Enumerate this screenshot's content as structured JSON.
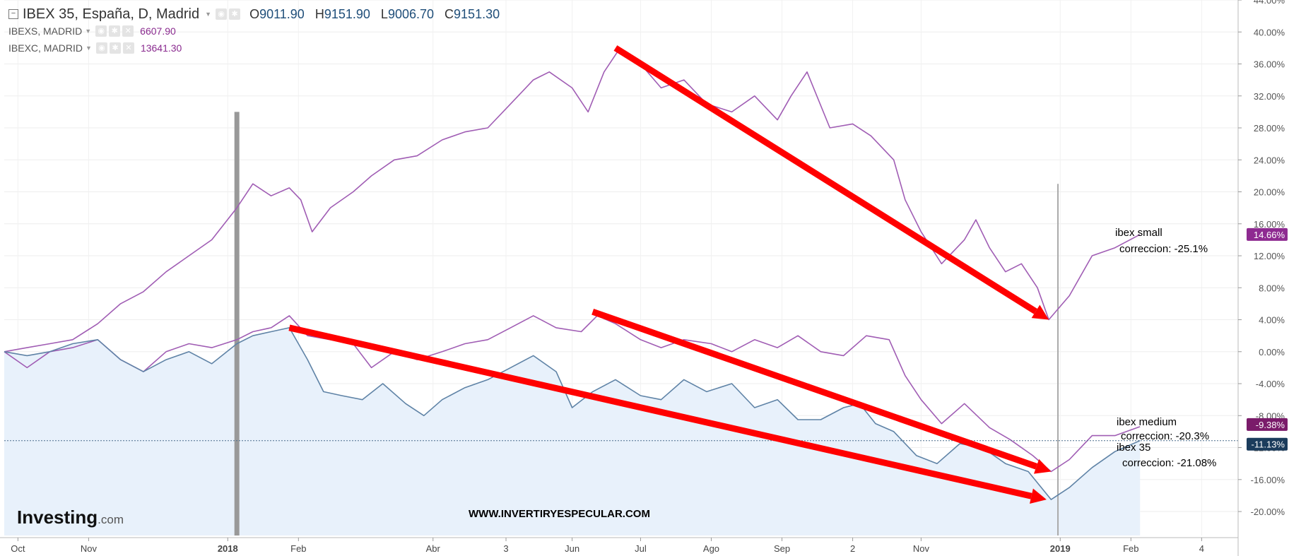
{
  "header": {
    "main_symbol": "IBEX 35, España, D, Madrid",
    "ohlc": [
      {
        "k": "O",
        "v": "9011.90"
      },
      {
        "k": "H",
        "v": "9151.90"
      },
      {
        "k": "L",
        "v": "9006.70"
      },
      {
        "k": "C",
        "v": "9151.30"
      }
    ],
    "series": [
      {
        "name": "IBEXS, MADRID",
        "value": "6607.90"
      },
      {
        "name": "IBEXC, MADRID",
        "value": "13641.30"
      }
    ]
  },
  "watermark": {
    "brand": "Investing",
    "suffix": ".com",
    "url": "WWW.INVERTIRYESPECULAR.COM"
  },
  "colors": {
    "purple": "#a05db4",
    "blue": "#5f83a6",
    "fill": "#e8f1fb",
    "arrow": "#ff0000"
  },
  "chart_data": {
    "type": "line",
    "x_labels": [
      "Oct",
      "Nov",
      "2018",
      "Feb",
      "Abr",
      "3",
      "Jun",
      "Jul",
      "Ago",
      "Sep",
      "2",
      "Nov",
      "2019",
      "Feb",
      "4"
    ],
    "y_ticks": [
      "44.00%",
      "40.00%",
      "36.00%",
      "32.00%",
      "28.00%",
      "24.00%",
      "20.00%",
      "16.00%",
      "12.00%",
      "8.00%",
      "4.00%",
      "0.00%",
      "-4.00%",
      "-8.00%",
      "-12.00%",
      "-16.00%",
      "-20.00%"
    ],
    "ylim": [
      -23,
      44
    ],
    "x_range": [
      "2017-09-25",
      "2019-03-20"
    ],
    "series": [
      {
        "name": "IBEXS, MADRID",
        "color": "#a05db4",
        "points": [
          [
            "2017-09-25",
            0
          ],
          [
            "2017-10-05",
            0.5
          ],
          [
            "2017-10-15",
            1.0
          ],
          [
            "2017-10-25",
            1.5
          ],
          [
            "2017-11-05",
            3.5
          ],
          [
            "2017-11-15",
            6.0
          ],
          [
            "2017-11-25",
            7.5
          ],
          [
            "2017-12-05",
            10.0
          ],
          [
            "2017-12-15",
            12.0
          ],
          [
            "2017-12-25",
            14.0
          ],
          [
            "2018-01-05",
            18.0
          ],
          [
            "2018-01-12",
            21.0
          ],
          [
            "2018-01-20",
            19.5
          ],
          [
            "2018-01-28",
            20.5
          ],
          [
            "2018-02-02",
            19.0
          ],
          [
            "2018-02-07",
            15.0
          ],
          [
            "2018-02-15",
            18.0
          ],
          [
            "2018-02-25",
            20.0
          ],
          [
            "2018-03-05",
            22.0
          ],
          [
            "2018-03-15",
            24.0
          ],
          [
            "2018-03-25",
            24.5
          ],
          [
            "2018-04-05",
            26.5
          ],
          [
            "2018-04-15",
            27.5
          ],
          [
            "2018-04-25",
            28.0
          ],
          [
            "2018-05-05",
            31.0
          ],
          [
            "2018-05-15",
            34.0
          ],
          [
            "2018-05-22",
            35.0
          ],
          [
            "2018-06-01",
            33.0
          ],
          [
            "2018-06-08",
            30.0
          ],
          [
            "2018-06-15",
            35.0
          ],
          [
            "2018-06-22",
            38.0
          ],
          [
            "2018-07-01",
            36.0
          ],
          [
            "2018-07-10",
            33.0
          ],
          [
            "2018-07-20",
            34.0
          ],
          [
            "2018-07-30",
            31.0
          ],
          [
            "2018-08-10",
            30.0
          ],
          [
            "2018-08-20",
            32.0
          ],
          [
            "2018-08-30",
            29.0
          ],
          [
            "2018-09-05",
            32.0
          ],
          [
            "2018-09-12",
            35.0
          ],
          [
            "2018-09-22",
            28.0
          ],
          [
            "2018-10-02",
            28.5
          ],
          [
            "2018-10-10",
            27.0
          ],
          [
            "2018-10-20",
            24.0
          ],
          [
            "2018-10-25",
            19.0
          ],
          [
            "2018-11-01",
            15.0
          ],
          [
            "2018-11-10",
            11.0
          ],
          [
            "2018-11-20",
            14.0
          ],
          [
            "2018-11-25",
            16.5
          ],
          [
            "2018-12-01",
            13.0
          ],
          [
            "2018-12-08",
            10.0
          ],
          [
            "2018-12-15",
            11.0
          ],
          [
            "2018-12-22",
            8.0
          ],
          [
            "2018-12-27",
            4.0
          ],
          [
            "2019-01-05",
            7.0
          ],
          [
            "2019-01-15",
            12.0
          ],
          [
            "2019-01-25",
            13.0
          ],
          [
            "2019-02-05",
            14.66
          ]
        ]
      },
      {
        "name": "IBEXC, MADRID",
        "color": "#a05db4",
        "points": [
          [
            "2017-09-25",
            0
          ],
          [
            "2017-10-05",
            -2.0
          ],
          [
            "2017-10-15",
            0.0
          ],
          [
            "2017-10-25",
            0.5
          ],
          [
            "2017-11-05",
            1.5
          ],
          [
            "2017-11-15",
            -1.0
          ],
          [
            "2017-11-25",
            -2.5
          ],
          [
            "2017-12-05",
            0.0
          ],
          [
            "2017-12-15",
            1.0
          ],
          [
            "2017-12-25",
            0.5
          ],
          [
            "2018-01-05",
            1.5
          ],
          [
            "2018-01-12",
            2.5
          ],
          [
            "2018-01-20",
            3.0
          ],
          [
            "2018-01-28",
            4.5
          ],
          [
            "2018-02-05",
            2.0
          ],
          [
            "2018-02-15",
            1.5
          ],
          [
            "2018-02-25",
            1.0
          ],
          [
            "2018-03-05",
            -2.0
          ],
          [
            "2018-03-15",
            0.0
          ],
          [
            "2018-03-25",
            -1.0
          ],
          [
            "2018-04-05",
            0.0
          ],
          [
            "2018-04-15",
            1.0
          ],
          [
            "2018-04-25",
            1.5
          ],
          [
            "2018-05-05",
            3.0
          ],
          [
            "2018-05-15",
            4.5
          ],
          [
            "2018-05-25",
            3.0
          ],
          [
            "2018-06-05",
            2.5
          ],
          [
            "2018-06-12",
            4.5
          ],
          [
            "2018-06-20",
            3.5
          ],
          [
            "2018-07-01",
            1.5
          ],
          [
            "2018-07-10",
            0.5
          ],
          [
            "2018-07-20",
            1.5
          ],
          [
            "2018-08-01",
            1.0
          ],
          [
            "2018-08-10",
            0.0
          ],
          [
            "2018-08-20",
            1.5
          ],
          [
            "2018-08-30",
            0.5
          ],
          [
            "2018-09-08",
            2.0
          ],
          [
            "2018-09-18",
            0.0
          ],
          [
            "2018-09-28",
            -0.5
          ],
          [
            "2018-10-08",
            2.0
          ],
          [
            "2018-10-18",
            1.5
          ],
          [
            "2018-10-25",
            -3.0
          ],
          [
            "2018-11-01",
            -6.0
          ],
          [
            "2018-11-10",
            -9.0
          ],
          [
            "2018-11-20",
            -6.5
          ],
          [
            "2018-12-01",
            -9.5
          ],
          [
            "2018-12-10",
            -11.0
          ],
          [
            "2018-12-20",
            -13.0
          ],
          [
            "2018-12-28",
            -15.0
          ],
          [
            "2019-01-05",
            -13.5
          ],
          [
            "2019-01-15",
            -10.5
          ],
          [
            "2019-01-25",
            -10.5
          ],
          [
            "2019-02-05",
            -9.38
          ]
        ]
      },
      {
        "name": "IBEX 35, España",
        "color": "#5f83a6",
        "points": [
          [
            "2017-09-25",
            0
          ],
          [
            "2017-10-05",
            -0.5
          ],
          [
            "2017-10-15",
            0.0
          ],
          [
            "2017-10-25",
            1.0
          ],
          [
            "2017-11-05",
            1.5
          ],
          [
            "2017-11-15",
            -1.0
          ],
          [
            "2017-11-25",
            -2.5
          ],
          [
            "2017-12-05",
            -1.0
          ],
          [
            "2017-12-15",
            0.0
          ],
          [
            "2017-12-25",
            -1.5
          ],
          [
            "2018-01-05",
            1.0
          ],
          [
            "2018-01-12",
            2.0
          ],
          [
            "2018-01-20",
            2.5
          ],
          [
            "2018-01-28",
            3.0
          ],
          [
            "2018-02-05",
            -1.0
          ],
          [
            "2018-02-12",
            -5.0
          ],
          [
            "2018-02-20",
            -5.5
          ],
          [
            "2018-03-01",
            -6.0
          ],
          [
            "2018-03-10",
            -4.0
          ],
          [
            "2018-03-20",
            -6.5
          ],
          [
            "2018-03-28",
            -8.0
          ],
          [
            "2018-04-05",
            -6.0
          ],
          [
            "2018-04-15",
            -4.5
          ],
          [
            "2018-04-25",
            -3.5
          ],
          [
            "2018-05-05",
            -2.0
          ],
          [
            "2018-05-15",
            -0.5
          ],
          [
            "2018-05-25",
            -2.5
          ],
          [
            "2018-06-01",
            -7.0
          ],
          [
            "2018-06-10",
            -5.0
          ],
          [
            "2018-06-20",
            -3.5
          ],
          [
            "2018-07-01",
            -5.5
          ],
          [
            "2018-07-10",
            -6.0
          ],
          [
            "2018-07-20",
            -3.5
          ],
          [
            "2018-07-30",
            -5.0
          ],
          [
            "2018-08-10",
            -4.0
          ],
          [
            "2018-08-20",
            -7.0
          ],
          [
            "2018-08-30",
            -6.0
          ],
          [
            "2018-09-08",
            -8.5
          ],
          [
            "2018-09-18",
            -8.5
          ],
          [
            "2018-09-28",
            -7.0
          ],
          [
            "2018-10-05",
            -6.5
          ],
          [
            "2018-10-12",
            -9.0
          ],
          [
            "2018-10-20",
            -10.0
          ],
          [
            "2018-10-30",
            -13.0
          ],
          [
            "2018-11-08",
            -14.0
          ],
          [
            "2018-11-18",
            -11.5
          ],
          [
            "2018-11-28",
            -12.0
          ],
          [
            "2018-12-08",
            -14.0
          ],
          [
            "2018-12-18",
            -15.0
          ],
          [
            "2018-12-28",
            -18.5
          ],
          [
            "2019-01-05",
            -17.0
          ],
          [
            "2019-01-15",
            -14.5
          ],
          [
            "2019-01-25",
            -12.5
          ],
          [
            "2019-02-05",
            -11.13
          ]
        ]
      }
    ],
    "badges": [
      {
        "label": "14.66%",
        "value": 14.66,
        "color": "#8e2a91"
      },
      {
        "label": "-9.38%",
        "value": -9.38,
        "color": "#7a1b6a"
      },
      {
        "label": "-11.13%",
        "value": -11.13,
        "color": "#1b3c5c"
      }
    ],
    "annotations": [
      {
        "lines": [
          "ibex small",
          "correccion: -25.1%"
        ]
      },
      {
        "lines": [
          "ibex medium",
          "correccion: -20.3%"
        ]
      },
      {
        "lines": [
          "ibex  35",
          "correccion: -21.08%"
        ]
      }
    ],
    "arrows": [
      {
        "from": [
          "2018-06-20",
          38
        ],
        "to": [
          "2018-12-27",
          4
        ]
      },
      {
        "from": [
          "2018-01-28",
          3
        ],
        "to": [
          "2018-12-26",
          -18.5
        ]
      },
      {
        "from": [
          "2018-06-10",
          5
        ],
        "to": [
          "2018-12-28",
          -15.0
        ]
      }
    ],
    "vertical_markers": [
      {
        "date": "2018-01-05",
        "top": 30
      },
      {
        "date": "2018-12-31",
        "top": 21
      }
    ],
    "dotted_level": -11.13,
    "grid": true
  }
}
